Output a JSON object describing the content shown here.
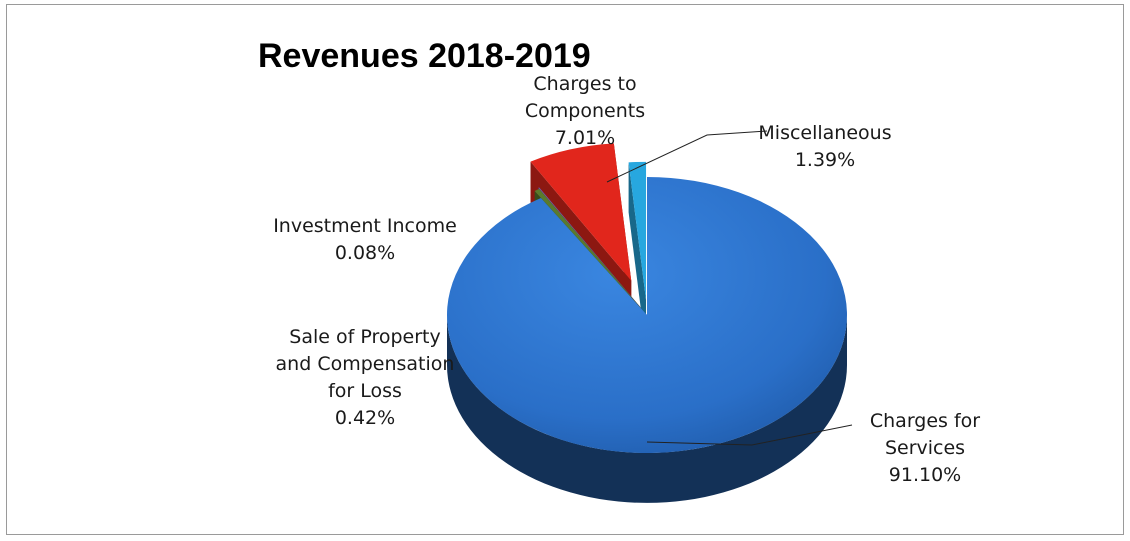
{
  "chart_data": {
    "type": "pie",
    "style": "3d-exploded",
    "title": "Revenues 2018-2019",
    "legend": "none",
    "slices": [
      {
        "key": "charges-for-services",
        "label_lines": [
          "Charges for",
          "Services"
        ],
        "value_text": "91.10%",
        "value": 91.1,
        "color": "#2e74cf"
      },
      {
        "key": "sale-of-property",
        "label_lines": [
          "Sale of Property",
          "and Compensation",
          "for Loss"
        ],
        "value_text": "0.42%",
        "value": 0.42,
        "color": "#5a7a2c"
      },
      {
        "key": "investment-income",
        "label_lines": [
          "Investment Income"
        ],
        "value_text": "0.08%",
        "value": 0.08,
        "color": "#7a5ba8"
      },
      {
        "key": "charges-to-components",
        "label_lines": [
          "Charges to",
          "Components"
        ],
        "value_text": "7.01%",
        "value": 7.01,
        "color": "#e1261c"
      },
      {
        "key": "miscellaneous",
        "label_lines": [
          "Miscellaneous"
        ],
        "value_text": "1.39%",
        "value": 1.39,
        "color": "#27a7df"
      }
    ]
  }
}
